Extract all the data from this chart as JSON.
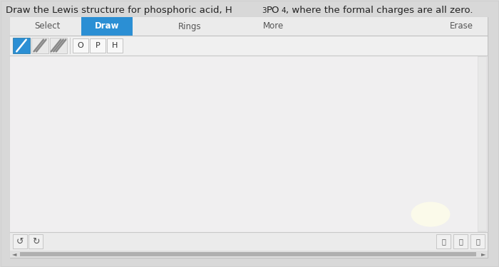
{
  "title_pre": "Draw the Lewis structure for phosphoric acid, H",
  "title_sub": "3",
  "title_mid": "PO",
  "title_sub2": "4",
  "title_post": ", where the formal charges are all zero.",
  "title_fontsize": 9.5,
  "bg_color": "#e8e8e8",
  "outer_bg": "#d8d8d8",
  "panel_bg": "#f5f4f5",
  "panel_border": "#c0c0c0",
  "select_label": "Select",
  "draw_label": "Draw",
  "draw_btn_color": "#2b8fd4",
  "draw_btn_text_color": "#ffffff",
  "rings_label": "Rings",
  "more_label": "More",
  "erase_label": "Erase",
  "atom_buttons": [
    "O",
    "P",
    "H"
  ],
  "atom_btn_bg": "#f8f8f8",
  "atom_btn_border": "#bbbbbb",
  "canvas_bg": "#f0eff0",
  "bond_icon_area_bg": "#2b8fd4",
  "bond_icon_border": "#1a6fa0",
  "scrollbar_bg": "#e0dfe0",
  "scrollbar_thumb": "#b0afb0",
  "bottom_btn_bg": "#f0f0f0",
  "bottom_btn_border": "#c0c0c0",
  "hscroll_bg": "#c8c8c8",
  "hscroll_thumb": "#b0b0b0",
  "glow_color": "#fffff0"
}
